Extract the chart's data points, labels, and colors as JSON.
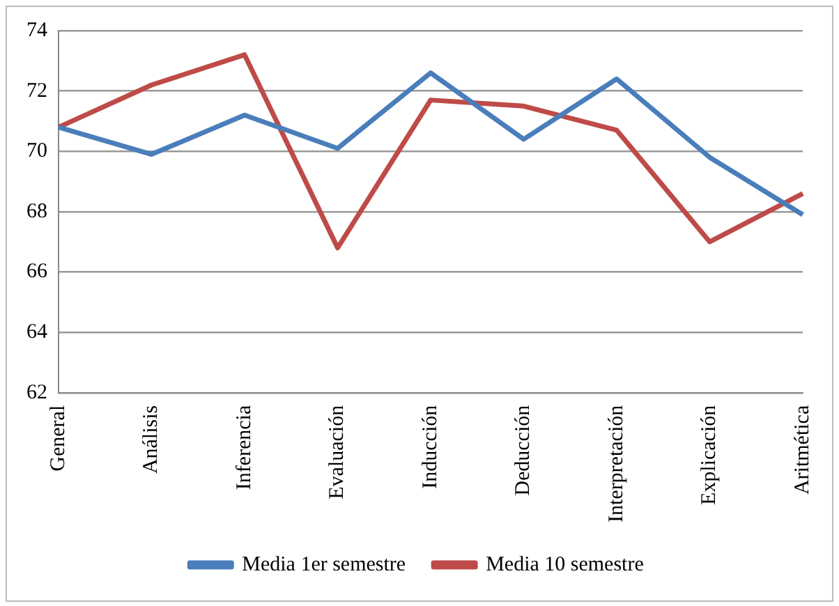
{
  "chart_data": {
    "type": "line",
    "categories": [
      "General",
      "Análisis",
      "Inferencia",
      "Evaluación",
      "Inducción",
      "Deducción",
      "Interpretación",
      "Explicación",
      "Aritmética"
    ],
    "series": [
      {
        "name": "Media 1er semestre",
        "color": "#4a7ebb",
        "values": [
          70.8,
          69.9,
          71.2,
          70.1,
          72.6,
          70.4,
          72.4,
          69.8,
          67.9
        ]
      },
      {
        "name": "Media 10 semestre",
        "color": "#be4b48",
        "values": [
          70.8,
          72.2,
          73.2,
          66.8,
          71.7,
          71.5,
          70.7,
          67.0,
          68.6
        ]
      }
    ],
    "ylim": [
      62,
      74
    ],
    "yticks": [
      62,
      64,
      66,
      68,
      70,
      72,
      74
    ],
    "grid": "y",
    "legend": "bottom",
    "marker": "none",
    "line_style": "solid"
  }
}
